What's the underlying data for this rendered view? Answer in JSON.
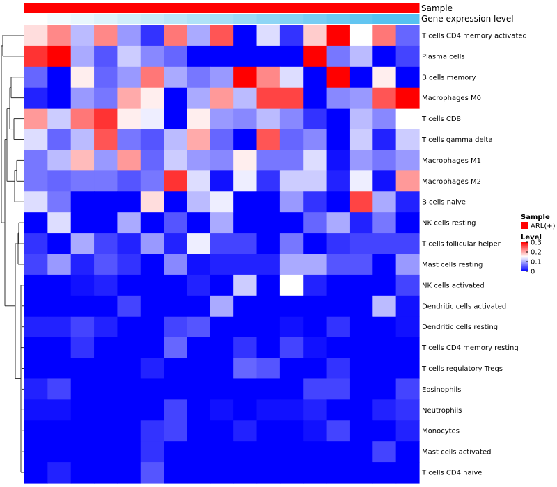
{
  "chart_data": {
    "type": "heatmap",
    "title": "",
    "column_annotations": [
      {
        "name": "Sample",
        "kind": "categorical",
        "color": "#ff0000",
        "value": "ARL(+)"
      },
      {
        "name": "Gene expression level",
        "kind": "continuous",
        "low_color": "#ffffff",
        "high_color": "#56c1f0",
        "values": [
          0,
          0.07,
          0.13,
          0.2,
          0.27,
          0.33,
          0.4,
          0.47,
          0.53,
          0.6,
          0.67,
          0.73,
          0.8,
          0.87,
          0.93,
          1.0,
          1.0
        ]
      }
    ],
    "rows": [
      "T cells CD4 memory activated",
      "Plasma cells",
      "B cells memory",
      "Macrophages M0",
      "T cells CD8",
      "T cells gamma delta",
      "Macrophages M1",
      "Macrophages M2",
      "B cells naive",
      "NK cells resting",
      "T cells follicular helper",
      "Mast cells resting",
      "NK cells activated",
      "Dendritic cells activated",
      "Dendritic cells resting",
      "T cells CD4 memory resting",
      "T cells regulatory  Tregs",
      "Eosinophils",
      "Neutrophils",
      "Monocytes",
      "Mast cells activated",
      "T cells CD4 naive"
    ],
    "values": [
      [
        0.17,
        0.22,
        0.11,
        0.22,
        0.09,
        0.03,
        0.23,
        0.1,
        0.25,
        0.0,
        0.13,
        0.03,
        0.18,
        0.3,
        0.15,
        0.23,
        0.06
      ],
      [
        0.27,
        0.3,
        0.1,
        0.05,
        0.12,
        0.08,
        0.06,
        0.0,
        0.0,
        0.0,
        0.0,
        0.0,
        0.3,
        0.07,
        0.11,
        0.0,
        0.04
      ],
      [
        0.06,
        0.0,
        0.16,
        0.06,
        0.09,
        0.23,
        0.1,
        0.07,
        0.09,
        0.3,
        0.22,
        0.13,
        0.0,
        0.3,
        0.0,
        0.16,
        0.0
      ],
      [
        0.02,
        0.0,
        0.09,
        0.07,
        0.2,
        0.16,
        0.0,
        0.1,
        0.21,
        0.11,
        0.26,
        0.26,
        0.0,
        0.08,
        0.09,
        0.25,
        0.3
      ],
      [
        0.21,
        0.12,
        0.23,
        0.27,
        0.16,
        0.14,
        0.0,
        0.16,
        0.09,
        0.08,
        0.11,
        0.08,
        0.03,
        0.0,
        0.11,
        0.08,
        0.15
      ],
      [
        0.13,
        0.06,
        0.11,
        0.25,
        0.07,
        0.05,
        0.11,
        0.2,
        0.06,
        0.0,
        0.25,
        0.06,
        0.08,
        0.0,
        0.12,
        0.02,
        0.12
      ],
      [
        0.07,
        0.11,
        0.19,
        0.09,
        0.21,
        0.06,
        0.12,
        0.09,
        0.08,
        0.16,
        0.07,
        0.07,
        0.13,
        0.01,
        0.09,
        0.07,
        0.09
      ],
      [
        0.07,
        0.06,
        0.07,
        0.07,
        0.05,
        0.07,
        0.27,
        0.13,
        0.01,
        0.14,
        0.03,
        0.12,
        0.12,
        0.02,
        0.14,
        0.01,
        0.21
      ],
      [
        0.13,
        0.07,
        0.0,
        0.0,
        0.0,
        0.17,
        0.0,
        0.11,
        0.14,
        0.0,
        0.0,
        0.09,
        0.03,
        0.0,
        0.26,
        0.1,
        0.02
      ],
      [
        0.0,
        0.13,
        0.0,
        0.0,
        0.1,
        0.0,
        0.05,
        0.0,
        0.1,
        0.0,
        0.0,
        0.0,
        0.06,
        0.1,
        0.02,
        0.07,
        0.0
      ],
      [
        0.03,
        0.0,
        0.1,
        0.04,
        0.02,
        0.09,
        0.02,
        0.14,
        0.04,
        0.04,
        0.0,
        0.07,
        0.0,
        0.03,
        0.04,
        0.04,
        0.04
      ],
      [
        0.04,
        0.09,
        0.02,
        0.05,
        0.03,
        0.0,
        0.08,
        0.01,
        0.02,
        0.02,
        0.02,
        0.1,
        0.1,
        0.05,
        0.05,
        0.0,
        0.09
      ],
      [
        0.0,
        0.0,
        0.01,
        0.02,
        0.0,
        0.0,
        0.0,
        0.02,
        0.0,
        0.12,
        0.0,
        0.15,
        0.02,
        0.0,
        0.0,
        0.0,
        0.04
      ],
      [
        0.0,
        0.0,
        0.0,
        0.0,
        0.04,
        0.0,
        0.0,
        0.0,
        0.1,
        0.0,
        0.0,
        0.0,
        0.0,
        0.0,
        0.0,
        0.11,
        0.01
      ],
      [
        0.02,
        0.02,
        0.04,
        0.02,
        0.0,
        0.0,
        0.04,
        0.05,
        0.0,
        0.0,
        0.0,
        0.01,
        0.0,
        0.03,
        0.0,
        0.0,
        0.01
      ],
      [
        0.0,
        0.0,
        0.03,
        0.0,
        0.0,
        0.0,
        0.06,
        0.0,
        0.0,
        0.03,
        0.0,
        0.04,
        0.01,
        0.0,
        0.0,
        0.0,
        0.0
      ],
      [
        0.0,
        0.0,
        0.0,
        0.0,
        0.0,
        0.02,
        0.0,
        0.0,
        0.0,
        0.06,
        0.05,
        0.0,
        0.0,
        0.03,
        0.0,
        0.0,
        0.0
      ],
      [
        0.02,
        0.04,
        0.0,
        0.0,
        0.0,
        0.0,
        0.0,
        0.0,
        0.0,
        0.0,
        0.0,
        0.0,
        0.04,
        0.04,
        0.0,
        0.0,
        0.04
      ],
      [
        0.01,
        0.01,
        0.0,
        0.0,
        0.0,
        0.0,
        0.04,
        0.0,
        0.01,
        0.0,
        0.01,
        0.01,
        0.02,
        0.0,
        0.0,
        0.02,
        0.03
      ],
      [
        0.0,
        0.0,
        0.0,
        0.0,
        0.0,
        0.03,
        0.04,
        0.0,
        0.0,
        0.02,
        0.0,
        0.0,
        0.01,
        0.04,
        0.0,
        0.0,
        0.02
      ],
      [
        0.0,
        0.0,
        0.0,
        0.0,
        0.0,
        0.03,
        0.0,
        0.0,
        0.0,
        0.0,
        0.0,
        0.0,
        0.0,
        0.0,
        0.0,
        0.04,
        0.0
      ],
      [
        0.0,
        0.02,
        0.0,
        0.0,
        0.0,
        0.05,
        0.0,
        0.0,
        0.0,
        0.0,
        0.0,
        0.0,
        0.0,
        0.0,
        0.0,
        0.0,
        0.0
      ]
    ],
    "color_scale": {
      "min": 0,
      "max": 0.3,
      "low": "#0000ff",
      "mid": "#ffffff",
      "midpoint": 0.15,
      "high": "#ff0000"
    },
    "legend": {
      "sample_title": "Sample",
      "sample_entry": "ARL(+)",
      "level_title": "Level",
      "level_ticks": [
        0.3,
        0.2,
        0.1,
        0
      ],
      "level_tick_labels": [
        "0.3",
        "0.2",
        "0.1",
        "0"
      ],
      "placement": "right"
    },
    "row_dendrogram": "left"
  }
}
